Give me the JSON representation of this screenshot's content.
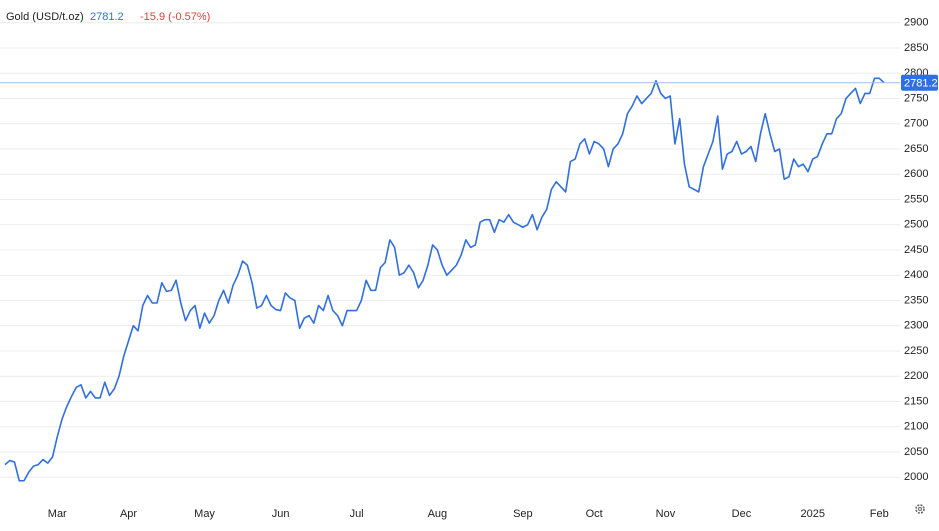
{
  "chart_data": {
    "type": "line",
    "title": "Gold (USD/t.oz)",
    "change": "-15.9 (-0.57%)",
    "change_color": "#e0413a",
    "categories": [
      null,
      null,
      null,
      null,
      null,
      null,
      null,
      null,
      null,
      null,
      null,
      "Mar",
      null,
      null,
      null,
      null,
      null,
      null,
      null,
      null,
      null,
      null,
      null,
      null,
      null,
      null,
      "Apr",
      null,
      null,
      null,
      null,
      null,
      null,
      null,
      null,
      null,
      null,
      null,
      null,
      null,
      null,
      null,
      "May",
      null,
      null,
      null,
      null,
      null,
      null,
      null,
      null,
      null,
      null,
      null,
      null,
      null,
      null,
      null,
      "Jun",
      null,
      null,
      null,
      null,
      null,
      null,
      null,
      null,
      null,
      null,
      null,
      null,
      null,
      null,
      null,
      "Jul",
      null,
      null,
      null,
      null,
      null,
      null,
      null,
      null,
      null,
      null,
      null,
      null,
      null,
      null,
      null,
      null,
      "Aug",
      null,
      null,
      null,
      null,
      null,
      null,
      null,
      null,
      null,
      null,
      null,
      null,
      null,
      null,
      null,
      null,
      null,
      "Sep",
      null,
      null,
      null,
      null,
      null,
      null,
      null,
      null,
      null,
      null,
      null,
      null,
      null,
      null,
      "Oct",
      null,
      null,
      null,
      null,
      null,
      null,
      null,
      null,
      null,
      null,
      null,
      null,
      null,
      null,
      "Nov",
      null,
      null,
      null,
      null,
      null,
      null,
      null,
      null,
      null,
      null,
      null,
      null,
      null,
      null,
      null,
      "Dec",
      null,
      null,
      null,
      null,
      null,
      null,
      null,
      null,
      null,
      null,
      null,
      null,
      null,
      null,
      "2025",
      null,
      null,
      null,
      null,
      null,
      null,
      null,
      null,
      null,
      null,
      null,
      null,
      null,
      "Feb",
      null
    ],
    "series": [
      {
        "name": "Gold",
        "color": "#2f6fe4",
        "values": [
          2025,
          2033,
          2030,
          1993,
          1993,
          2010,
          2022,
          2025,
          2035,
          2028,
          2040,
          2080,
          2115,
          2140,
          2160,
          2178,
          2183,
          2157,
          2170,
          2157,
          2157,
          2188,
          2162,
          2175,
          2200,
          2240,
          2270,
          2300,
          2290,
          2340,
          2360,
          2345,
          2345,
          2385,
          2368,
          2370,
          2390,
          2345,
          2310,
          2330,
          2340,
          2295,
          2325,
          2305,
          2320,
          2350,
          2370,
          2345,
          2380,
          2400,
          2428,
          2420,
          2385,
          2335,
          2340,
          2360,
          2340,
          2332,
          2330,
          2365,
          2355,
          2350,
          2295,
          2315,
          2320,
          2305,
          2340,
          2330,
          2360,
          2330,
          2320,
          2300,
          2330,
          2330,
          2330,
          2350,
          2390,
          2370,
          2370,
          2415,
          2425,
          2470,
          2455,
          2400,
          2405,
          2420,
          2405,
          2375,
          2390,
          2420,
          2460,
          2450,
          2420,
          2400,
          2410,
          2420,
          2440,
          2470,
          2455,
          2460,
          2505,
          2510,
          2510,
          2485,
          2510,
          2505,
          2520,
          2505,
          2500,
          2495,
          2500,
          2520,
          2490,
          2515,
          2530,
          2570,
          2585,
          2575,
          2565,
          2625,
          2630,
          2660,
          2670,
          2640,
          2665,
          2660,
          2650,
          2615,
          2650,
          2660,
          2680,
          2720,
          2735,
          2755,
          2740,
          2750,
          2760,
          2785,
          2760,
          2750,
          2755,
          2660,
          2710,
          2620,
          2575,
          2570,
          2565,
          2615,
          2640,
          2665,
          2715,
          2610,
          2640,
          2645,
          2665,
          2640,
          2645,
          2655,
          2625,
          2680,
          2720,
          2680,
          2645,
          2650,
          2590,
          2595,
          2630,
          2615,
          2620,
          2605,
          2630,
          2635,
          2660,
          2680,
          2680,
          2710,
          2720,
          2750,
          2760,
          2770,
          2740,
          2760,
          2760,
          2790,
          2790,
          2781.2
        ]
      }
    ],
    "ylim": [
      1945,
      2945
    ],
    "yticks": [
      2000,
      2050,
      2100,
      2150,
      2200,
      2250,
      2300,
      2350,
      2400,
      2450,
      2500,
      2550,
      2600,
      2650,
      2700,
      2750,
      2800,
      2850,
      2900
    ],
    "grid": true
  }
}
